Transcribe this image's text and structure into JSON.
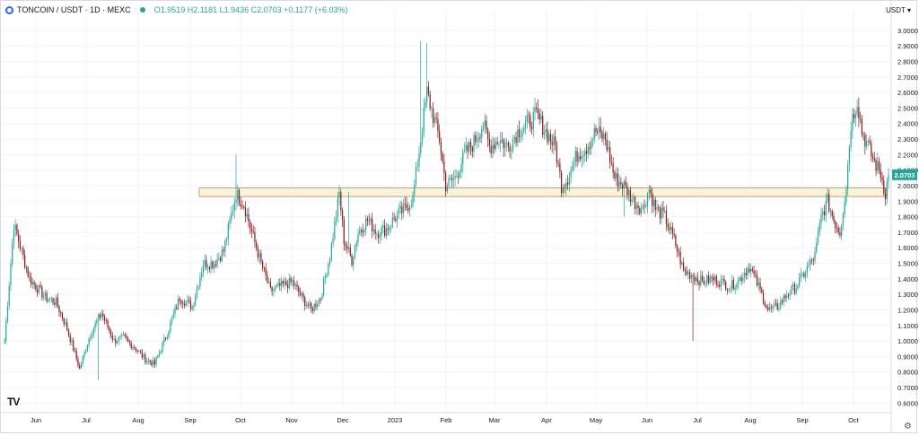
{
  "legend": {
    "symbol": "TONCOIN / USDT · 1D · MEXC",
    "ohlc": "O1.9519 H2.1181 L1.9436 C2.0703 +0.1177 (+6.03%)"
  },
  "currency_button": "USDT ▾",
  "logo": "TV",
  "settings_icon": "gear-icon",
  "colors": {
    "up": "#26a69a",
    "down": "#8b1a1a",
    "grid": "#f0f3fa",
    "zone_fill": "#fdf3dc",
    "zone_border": "#b08b54",
    "price_label": "#26a69a"
  },
  "chart_data": {
    "type": "candlestick",
    "title": "TONCOIN / USDT · 1D · MEXC",
    "ylim": [
      0.55,
      3.08
    ],
    "y_ticks": [
      "3.0000",
      "2.9000",
      "2.8000",
      "2.7000",
      "2.6000",
      "2.5000",
      "2.4000",
      "2.3000",
      "2.2000",
      "2.1000",
      "2.0000",
      "1.9000",
      "1.8000",
      "1.7000",
      "1.6000",
      "1.5000",
      "1.4000",
      "1.3000",
      "1.2000",
      "1.1000",
      "1.0000",
      "0.9000",
      "0.8000",
      "0.7000",
      "0.6000"
    ],
    "x_ticks": [
      "Jun",
      "Jul",
      "Aug",
      "Sep",
      "Oct",
      "Nov",
      "Dec",
      "2023",
      "Feb",
      "Mar",
      "Apr",
      "May",
      "Jun",
      "Jul",
      "Aug",
      "Sep",
      "Oct"
    ],
    "last_price": 2.0703,
    "last_price_label": "2.0703",
    "zone": {
      "low": 1.93,
      "high": 1.985
    },
    "anchors": [
      [
        0,
        1.0
      ],
      [
        6,
        1.75
      ],
      [
        16,
        1.4
      ],
      [
        26,
        1.28
      ],
      [
        33,
        1.25
      ],
      [
        40,
        1.08
      ],
      [
        48,
        0.82
      ],
      [
        55,
        1.05
      ],
      [
        62,
        1.18
      ],
      [
        70,
        1.0
      ],
      [
        76,
        1.02
      ],
      [
        84,
        0.95
      ],
      [
        90,
        0.88
      ],
      [
        96,
        0.85
      ],
      [
        104,
        1.05
      ],
      [
        112,
        1.28
      ],
      [
        120,
        1.22
      ],
      [
        127,
        1.5
      ],
      [
        134,
        1.5
      ],
      [
        140,
        1.58
      ],
      [
        148,
        1.95
      ],
      [
        153,
        1.88
      ],
      [
        158,
        1.7
      ],
      [
        164,
        1.5
      ],
      [
        170,
        1.32
      ],
      [
        176,
        1.35
      ],
      [
        184,
        1.38
      ],
      [
        190,
        1.28
      ],
      [
        196,
        1.2
      ],
      [
        202,
        1.28
      ],
      [
        208,
        1.55
      ],
      [
        214,
        1.95
      ],
      [
        217,
        1.65
      ],
      [
        222,
        1.52
      ],
      [
        226,
        1.7
      ],
      [
        232,
        1.78
      ],
      [
        238,
        1.7
      ],
      [
        244,
        1.72
      ],
      [
        250,
        1.8
      ],
      [
        256,
        1.85
      ],
      [
        261,
        1.92
      ],
      [
        266,
        2.3
      ],
      [
        270,
        2.6
      ],
      [
        274,
        2.45
      ],
      [
        278,
        2.3
      ],
      [
        282,
        2.0
      ],
      [
        288,
        2.05
      ],
      [
        294,
        2.2
      ],
      [
        300,
        2.28
      ],
      [
        306,
        2.4
      ],
      [
        310,
        2.25
      ],
      [
        316,
        2.3
      ],
      [
        322,
        2.25
      ],
      [
        328,
        2.35
      ],
      [
        334,
        2.4
      ],
      [
        340,
        2.45
      ],
      [
        346,
        2.35
      ],
      [
        352,
        2.25
      ],
      [
        356,
        2.0
      ],
      [
        360,
        2.05
      ],
      [
        366,
        2.2
      ],
      [
        372,
        2.25
      ],
      [
        378,
        2.35
      ],
      [
        384,
        2.3
      ],
      [
        390,
        2.05
      ],
      [
        396,
        2.0
      ],
      [
        402,
        1.9
      ],
      [
        408,
        1.85
      ],
      [
        412,
        1.98
      ],
      [
        416,
        1.85
      ],
      [
        422,
        1.8
      ],
      [
        428,
        1.65
      ],
      [
        434,
        1.45
      ],
      [
        440,
        1.42
      ],
      [
        446,
        1.38
      ],
      [
        452,
        1.4
      ],
      [
        458,
        1.38
      ],
      [
        464,
        1.35
      ],
      [
        470,
        1.4
      ],
      [
        476,
        1.48
      ],
      [
        482,
        1.35
      ],
      [
        488,
        1.2
      ],
      [
        494,
        1.22
      ],
      [
        500,
        1.3
      ],
      [
        506,
        1.35
      ],
      [
        512,
        1.45
      ],
      [
        518,
        1.55
      ],
      [
        522,
        1.8
      ],
      [
        526,
        1.9
      ],
      [
        530,
        1.78
      ],
      [
        534,
        1.7
      ],
      [
        538,
        2.0
      ],
      [
        541,
        2.4
      ],
      [
        545,
        2.55
      ],
      [
        548,
        2.35
      ],
      [
        552,
        2.25
      ],
      [
        556,
        2.15
      ],
      [
        560,
        2.08
      ],
      [
        563,
        1.95
      ],
      [
        565,
        2.0703
      ]
    ]
  }
}
